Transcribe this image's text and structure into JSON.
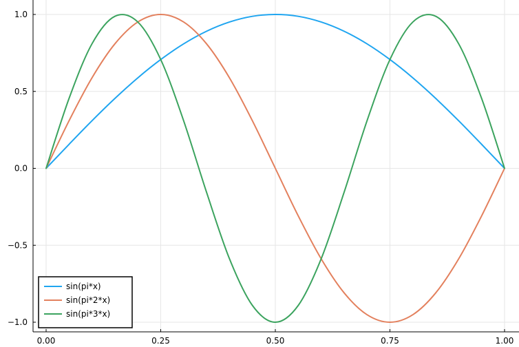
{
  "chart_data": {
    "type": "line",
    "title": "",
    "xlabel": "",
    "ylabel": "",
    "xlim": [
      0,
      1
    ],
    "ylim": [
      -1,
      1
    ],
    "x_ticks": [
      {
        "value": 0,
        "label": "0.00"
      },
      {
        "value": 0.25,
        "label": "0.25"
      },
      {
        "value": 0.5,
        "label": "0.50"
      },
      {
        "value": 0.75,
        "label": "0.75"
      },
      {
        "value": 1,
        "label": "1.00"
      }
    ],
    "y_ticks": [
      {
        "value": -1,
        "label": "−1.0"
      },
      {
        "value": -0.5,
        "label": "−0.5"
      },
      {
        "value": 0,
        "label": "0.0"
      },
      {
        "value": 0.5,
        "label": "0.5"
      },
      {
        "value": 1,
        "label": "1.0"
      }
    ],
    "grid": true,
    "legend_position": "bottom-left",
    "x": [
      0,
      0.05,
      0.1,
      0.15,
      0.2,
      0.25,
      0.3,
      0.35,
      0.4,
      0.45,
      0.5,
      0.55,
      0.6,
      0.65,
      0.7,
      0.75,
      0.8,
      0.85,
      0.9,
      0.95,
      1
    ],
    "series": [
      {
        "name": "sin(pi*x)",
        "color": "#1fa5f0",
        "values": [
          0,
          0.156,
          0.309,
          0.454,
          0.588,
          0.707,
          0.809,
          0.891,
          0.951,
          0.988,
          1,
          0.988,
          0.951,
          0.891,
          0.809,
          0.707,
          0.588,
          0.454,
          0.309,
          0.156,
          0
        ]
      },
      {
        "name": "sin(pi*2*x)",
        "color": "#e3805d",
        "values": [
          0,
          0.309,
          0.588,
          0.809,
          0.951,
          1,
          0.951,
          0.809,
          0.588,
          0.309,
          0,
          -0.309,
          -0.588,
          -0.809,
          -0.951,
          -1,
          -0.951,
          -0.809,
          -0.588,
          -0.309,
          0
        ]
      },
      {
        "name": "sin(pi*3*x)",
        "color": "#3ba35e",
        "values": [
          0,
          0.454,
          0.809,
          0.988,
          0.951,
          0.707,
          0.309,
          -0.156,
          -0.588,
          -0.891,
          -1,
          -0.891,
          -0.588,
          -0.156,
          0.309,
          0.707,
          0.951,
          0.988,
          0.809,
          0.454,
          0
        ]
      }
    ]
  }
}
